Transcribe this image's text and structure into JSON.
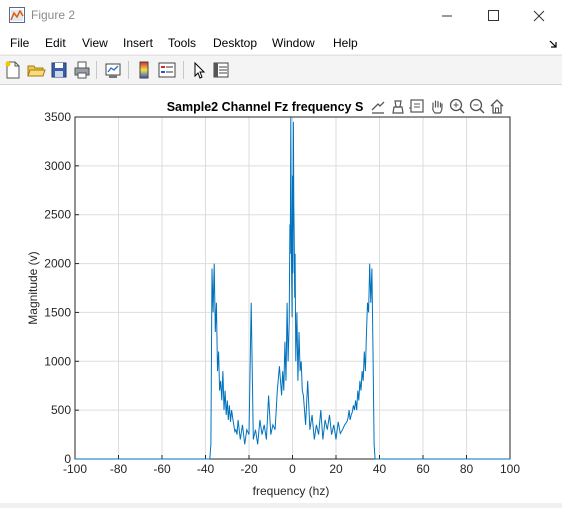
{
  "window": {
    "title": "Figure 2"
  },
  "menu": [
    "File",
    "Edit",
    "View",
    "Insert",
    "Tools",
    "Desktop",
    "Window",
    "Help"
  ],
  "toolbar_icons": [
    "new-figure-icon",
    "open-file-icon",
    "save-icon",
    "print-icon",
    "link-plot-icon",
    "insert-colorbar-icon",
    "insert-legend-icon",
    "edit-plot-icon",
    "property-inspector-icon"
  ],
  "axes_toolbar_icons": [
    "export-icon",
    "brush-icon",
    "data-tips-icon",
    "pan-icon",
    "zoom-in-icon",
    "zoom-out-icon",
    "home-icon"
  ],
  "colors": {
    "line": "#0072bd",
    "grid": "#dddddd",
    "axis": "#262626"
  },
  "chart_data": {
    "type": "line",
    "title": "Sample2 Channel Fz frequency S",
    "xlabel": "frequency (hz)",
    "ylabel": "Magnitude (v)",
    "xlim": [
      -100,
      100
    ],
    "ylim": [
      0,
      3500
    ],
    "xticks": [
      -100,
      -80,
      -60,
      -40,
      -20,
      0,
      20,
      40,
      60,
      80,
      100
    ],
    "yticks": [
      0,
      500,
      1000,
      1500,
      2000,
      2500,
      3000,
      3500
    ],
    "grid": true,
    "series": [
      {
        "x": [
          -100,
          -38,
          -37.5,
          -37,
          -36.5,
          -36,
          -35.5,
          -35,
          -34.5,
          -34,
          -33.5,
          -33,
          -32.5,
          -32,
          -31.5,
          -31,
          -30.5,
          -30,
          -29.5,
          -29,
          -28.5,
          -28,
          -27.5,
          -27,
          -26.5,
          -26,
          -25.5,
          -25,
          -24,
          -23,
          -22,
          -21,
          -20,
          -19,
          -18,
          -17,
          -16,
          -15,
          -14,
          -13,
          -12,
          -11,
          -10,
          -9,
          -8,
          -7,
          -6,
          -5,
          -4.5,
          -4,
          -3.5,
          -3,
          -2.5,
          -2,
          -1.5,
          -1.2,
          -1,
          -0.8,
          -0.6,
          -0.4,
          -0.2,
          0,
          0.2,
          0.4,
          0.6,
          0.8,
          1,
          1.2,
          1.5,
          2,
          2.5,
          3,
          3.5,
          4,
          4.5,
          5,
          6,
          7,
          8,
          9,
          10,
          11,
          12,
          13,
          14,
          15,
          16,
          17,
          18,
          19,
          20,
          21,
          22,
          23,
          24,
          25,
          25.5,
          26,
          26.5,
          27,
          27.5,
          28,
          28.5,
          29,
          29.5,
          30,
          30.5,
          31,
          31.5,
          32,
          32.5,
          33,
          33.5,
          34,
          34.5,
          35,
          35.5,
          36,
          36.5,
          37,
          37.5,
          38,
          100
        ],
        "y": [
          0,
          0,
          150,
          1950,
          1500,
          2000,
          1300,
          1600,
          900,
          1100,
          700,
          800,
          600,
          900,
          500,
          700,
          450,
          600,
          400,
          550,
          380,
          500,
          420,
          350,
          280,
          300,
          250,
          400,
          200,
          350,
          150,
          300,
          250,
          1600,
          200,
          300,
          150,
          400,
          250,
          350,
          200,
          650,
          250,
          350,
          300,
          700,
          950,
          650,
          900,
          700,
          1200,
          800,
          1600,
          1000,
          1400,
          2400,
          2100,
          3500,
          2600,
          1900,
          1450,
          2900,
          1900,
          3450,
          2600,
          2300,
          1650,
          2100,
          1000,
          1500,
          800,
          1300,
          900,
          1000,
          700,
          650,
          350,
          800,
          300,
          450,
          200,
          350,
          250,
          500,
          200,
          400,
          300,
          450,
          250,
          350,
          200,
          380,
          260,
          300,
          350,
          380,
          420,
          500,
          400,
          450,
          480,
          550,
          500,
          600,
          500,
          700,
          600,
          800,
          700,
          900,
          800,
          1100,
          900,
          1300,
          1600,
          1500,
          2000,
          1600,
          1950,
          1100,
          150,
          0,
          0
        ]
      }
    ]
  }
}
